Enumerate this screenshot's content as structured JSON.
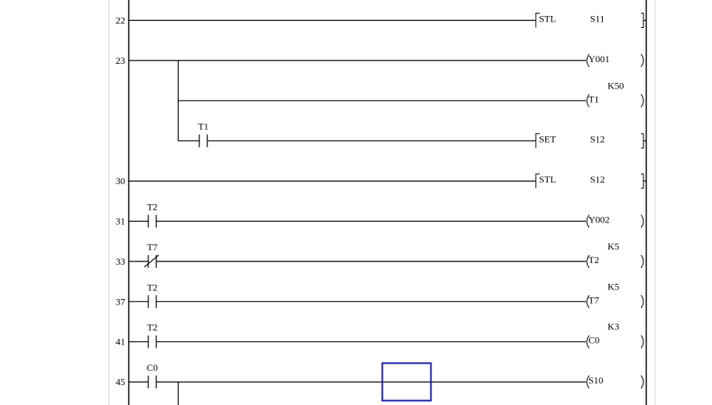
{
  "colors": {
    "line": "#000000",
    "border": "#d8d8d8",
    "cursor": "#1a1aa8"
  },
  "rungs": [
    {
      "step": "22",
      "branches": [
        {
          "contacts": [],
          "output": {
            "kind": "instruction",
            "op": "STL",
            "arg": "S11"
          }
        }
      ]
    },
    {
      "step": "23",
      "branches": [
        {
          "contacts": [],
          "output": {
            "kind": "coil",
            "device": "Y001"
          }
        },
        {
          "contacts": [],
          "output": {
            "kind": "coil",
            "device": "T1",
            "constant": "K50"
          }
        },
        {
          "contacts": [
            {
              "device": "T1",
              "type": "NO"
            }
          ],
          "output": {
            "kind": "instruction",
            "op": "SET",
            "arg": "S12"
          }
        }
      ]
    },
    {
      "step": "30",
      "branches": [
        {
          "contacts": [],
          "output": {
            "kind": "instruction",
            "op": "STL",
            "arg": "S12"
          }
        }
      ]
    },
    {
      "step": "31",
      "branches": [
        {
          "contacts": [
            {
              "device": "T2",
              "type": "NO"
            }
          ],
          "output": {
            "kind": "coil",
            "device": "Y002"
          }
        }
      ]
    },
    {
      "step": "33",
      "branches": [
        {
          "contacts": [
            {
              "device": "T7",
              "type": "NC"
            }
          ],
          "output": {
            "kind": "coil",
            "device": "T2",
            "constant": "K5"
          }
        }
      ]
    },
    {
      "step": "37",
      "branches": [
        {
          "contacts": [
            {
              "device": "T2",
              "type": "NO"
            }
          ],
          "output": {
            "kind": "coil",
            "device": "T7",
            "constant": "K5"
          }
        }
      ]
    },
    {
      "step": "41",
      "branches": [
        {
          "contacts": [
            {
              "device": "T2",
              "type": "NO"
            }
          ],
          "output": {
            "kind": "coil",
            "device": "C0",
            "constant": "K3"
          }
        }
      ]
    },
    {
      "step": "45",
      "branches": [
        {
          "contacts": [
            {
              "device": "C0",
              "type": "NO"
            }
          ],
          "output": {
            "kind": "coil",
            "device": "S10"
          }
        }
      ],
      "continues_below": true
    }
  ]
}
